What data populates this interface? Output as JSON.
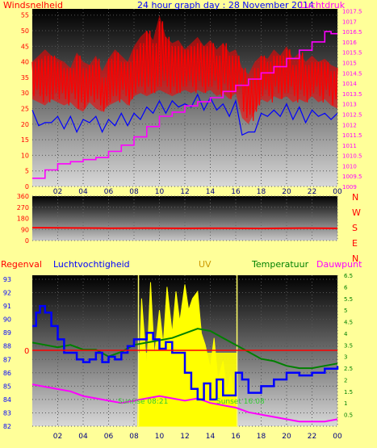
{
  "chart_data": [
    {
      "type": "line",
      "title": "24 hour graph day : 28 November 2014",
      "left_axis_label": "Windsnelheid",
      "right_axis_label": "Luchtdruk",
      "x_ticks": [
        "02",
        "04",
        "06",
        "08",
        "10",
        "12",
        "14",
        "16",
        "18",
        "20",
        "22",
        "00"
      ],
      "y_left_ticks": [
        0,
        5,
        10,
        15,
        20,
        25,
        30,
        35,
        40,
        45,
        50,
        55
      ],
      "y_left_range": [
        0,
        57
      ],
      "y_right_ticks": [
        "1009",
        "1009.5",
        "1010",
        "1010.5",
        "1011",
        "1011.5",
        "1012",
        "1012.5",
        "1013",
        "1013.5",
        "1014",
        "1014.5",
        "1015",
        "1015.5",
        "1016",
        "1016.5",
        "1017",
        "1017.5"
      ],
      "y_right_range": [
        1009,
        1017.6
      ],
      "colors": {
        "gust": "#ff0000",
        "average": "#0000ff",
        "pressure": "#ff00ff"
      },
      "series": [
        {
          "name": "",
          "values": [
            {
              "t": 0.0,
              "lo": 28,
              "hi": 40
            },
            {
              "t": 0.5,
              "lo": 27,
              "hi": 42
            },
            {
              "t": 1.0,
              "lo": 26,
              "hi": 44
            },
            {
              "t": 1.5,
              "lo": 28,
              "hi": 42
            },
            {
              "t": 2.0,
              "lo": 27,
              "hi": 41
            },
            {
              "t": 2.5,
              "lo": 26,
              "hi": 40
            },
            {
              "t": 3.0,
              "lo": 27,
              "hi": 38
            },
            {
              "t": 3.5,
              "lo": 25,
              "hi": 43
            },
            {
              "t": 4.0,
              "lo": 24,
              "hi": 40
            },
            {
              "t": 4.5,
              "lo": 27,
              "hi": 39
            },
            {
              "t": 5.0,
              "lo": 25,
              "hi": 42
            },
            {
              "t": 5.5,
              "lo": 24,
              "hi": 37
            },
            {
              "t": 6.0,
              "lo": 26,
              "hi": 41
            },
            {
              "t": 6.5,
              "lo": 27,
              "hi": 44
            },
            {
              "t": 7.0,
              "lo": 28,
              "hi": 42
            },
            {
              "t": 7.5,
              "lo": 26,
              "hi": 40
            },
            {
              "t": 8.0,
              "lo": 29,
              "hi": 45
            },
            {
              "t": 8.5,
              "lo": 30,
              "hi": 48
            },
            {
              "t": 9.0,
              "lo": 29,
              "hi": 50
            },
            {
              "t": 9.5,
              "lo": 30,
              "hi": 47
            },
            {
              "t": 10.0,
              "lo": 31,
              "hi": 55
            },
            {
              "t": 10.5,
              "lo": 30,
              "hi": 48
            },
            {
              "t": 11.0,
              "lo": 29,
              "hi": 46
            },
            {
              "t": 11.5,
              "lo": 30,
              "hi": 47
            },
            {
              "t": 12.0,
              "lo": 31,
              "hi": 44
            },
            {
              "t": 12.5,
              "lo": 30,
              "hi": 46
            },
            {
              "t": 13.0,
              "lo": 31,
              "hi": 48
            },
            {
              "t": 13.5,
              "lo": 30,
              "hi": 45
            },
            {
              "t": 14.0,
              "lo": 31,
              "hi": 47
            },
            {
              "t": 14.5,
              "lo": 29,
              "hi": 44
            },
            {
              "t": 15.0,
              "lo": 30,
              "hi": 46
            },
            {
              "t": 15.5,
              "lo": 28,
              "hi": 43
            },
            {
              "t": 16.0,
              "lo": 30,
              "hi": 44
            },
            {
              "t": 16.5,
              "lo": 22,
              "hi": 38
            },
            {
              "t": 17.0,
              "lo": 20,
              "hi": 36
            },
            {
              "t": 17.5,
              "lo": 24,
              "hi": 40
            },
            {
              "t": 18.0,
              "lo": 28,
              "hi": 42
            },
            {
              "t": 18.5,
              "lo": 27,
              "hi": 41
            },
            {
              "t": 19.0,
              "lo": 29,
              "hi": 44
            },
            {
              "t": 19.5,
              "lo": 28,
              "hi": 42
            },
            {
              "t": 20.0,
              "lo": 29,
              "hi": 45
            },
            {
              "t": 20.5,
              "lo": 27,
              "hi": 41
            },
            {
              "t": 21.0,
              "lo": 28,
              "hi": 43
            },
            {
              "t": 21.5,
              "lo": 27,
              "hi": 40
            },
            {
              "t": 22.0,
              "lo": 29,
              "hi": 42
            },
            {
              "t": 22.5,
              "lo": 27,
              "hi": 40
            },
            {
              "t": 23.0,
              "lo": 28,
              "hi": 41
            },
            {
              "t": 23.5,
              "lo": 26,
              "hi": 39
            },
            {
              "t": 24.0,
              "lo": 25,
              "hi": 38
            }
          ]
        },
        {
          "name": "",
          "x": [
            0,
            0.5,
            1,
            1.5,
            2,
            2.5,
            3,
            3.5,
            4,
            4.5,
            5,
            5.5,
            6,
            6.5,
            7,
            7.5,
            8,
            8.5,
            9,
            9.5,
            10,
            10.5,
            11,
            11.5,
            12,
            12.5,
            13,
            13.5,
            14,
            14.5,
            15,
            15.5,
            16,
            16.5,
            17,
            17.5,
            18,
            18.5,
            19,
            19.5,
            20,
            20.5,
            21,
            21.5,
            22,
            22.5,
            23,
            23.5,
            24
          ],
          "values": [
            23,
            21,
            19,
            22,
            21,
            20,
            21,
            19,
            20,
            22,
            21,
            19,
            20,
            21,
            22,
            21,
            22,
            23,
            24,
            25,
            26,
            25,
            26,
            27,
            25,
            27,
            28,
            26,
            27,
            26,
            25,
            24,
            26,
            18,
            16,
            19,
            22,
            24,
            23,
            24,
            25,
            23,
            24,
            22,
            23,
            24,
            22,
            23,
            22
          ]
        },
        {
          "name": "",
          "x": [
            0,
            1,
            2,
            3,
            4,
            5,
            6,
            7,
            8,
            9,
            10,
            11,
            12,
            13,
            14,
            15,
            16,
            17,
            18,
            19,
            20,
            21,
            22,
            23,
            23.5,
            24
          ],
          "values": [
            1009.4,
            1009.8,
            1010.1,
            1010.2,
            1010.3,
            1010.4,
            1010.7,
            1011.0,
            1011.4,
            1011.9,
            1012.4,
            1012.6,
            1012.9,
            1013.1,
            1013.3,
            1013.6,
            1013.9,
            1014.2,
            1014.5,
            1014.8,
            1015.2,
            1015.6,
            1016.0,
            1016.5,
            1016.4,
            1016.4
          ]
        }
      ]
    },
    {
      "type": "line",
      "x_ticks": [],
      "y_ticks": [
        0,
        90,
        180,
        270,
        360
      ],
      "y_range": [
        0,
        360
      ],
      "right_labels": [
        "N",
        "W",
        "S",
        "E",
        "N"
      ],
      "series": [
        {
          "name": "",
          "x": [
            0,
            3,
            6,
            9,
            12,
            15,
            18,
            21,
            24
          ],
          "values": [
            105,
            102,
            100,
            101,
            99,
            100,
            98,
            101,
            99
          ]
        }
      ]
    },
    {
      "type": "line",
      "labels": {
        "regenval": "Regenval",
        "humidity": "Luchtvochtigheid",
        "uv": "UV",
        "temperature": "Temperatuur",
        "dewpoint": "Dauwpunt",
        "sunrise": "Sunrise 08:21",
        "sunset": "Sunset 16:08"
      },
      "x_ticks": [
        "02",
        "04",
        "06",
        "08",
        "10",
        "12",
        "14",
        "16",
        "18",
        "20",
        "22",
        "00"
      ],
      "y_left_ticks": [
        82,
        83,
        84,
        85,
        86,
        87,
        88,
        89,
        90,
        91,
        92,
        93
      ],
      "y_left_range": [
        82,
        93.3
      ],
      "y_right_ticks": [
        "0.5",
        "1",
        "1.5",
        "2",
        "2.5",
        "3",
        "3.5",
        "4",
        "4.5",
        "5",
        "5.5",
        "6",
        "6.5"
      ],
      "y_right_range": [
        0,
        6.5
      ],
      "rain_axis_marker": "0",
      "colors": {
        "humidity": "#0000ff",
        "uv": "#ffff00",
        "temperature": "#008000",
        "dewpoint": "#ff00ff",
        "rain": "#ff0000"
      },
      "series": [
        {
          "name": "",
          "x": [
            0,
            0.3,
            0.6,
            1,
            1.5,
            2,
            2.5,
            3,
            3.5,
            4,
            4.5,
            5,
            5.5,
            6,
            6.5,
            7,
            7.5,
            8,
            9,
            9.5,
            10,
            10.5,
            11,
            12,
            12.5,
            13,
            13.5,
            14,
            14.5,
            15,
            16,
            16.5,
            17,
            18,
            19,
            20,
            21,
            22,
            23,
            24
          ],
          "values": [
            89.5,
            90.5,
            91.0,
            90.5,
            89.5,
            88.5,
            87.5,
            87.5,
            87.0,
            86.8,
            87.0,
            87.5,
            86.8,
            87.2,
            87.0,
            87.5,
            88.0,
            88.5,
            89.0,
            88.5,
            87.8,
            88.3,
            87.5,
            86.0,
            84.8,
            84.0,
            85.2,
            84.0,
            85.5,
            84.3,
            86.0,
            85.5,
            84.5,
            85.0,
            85.5,
            86.0,
            85.8,
            86.0,
            86.3,
            86.5
          ]
        },
        {
          "name": "",
          "x": [
            8.3,
            8.6,
            9,
            9.3,
            9.6,
            10,
            10.3,
            10.6,
            11,
            11.3,
            11.6,
            12,
            12.3,
            12.6,
            13,
            13.3,
            13.6,
            14,
            14.3,
            14.6,
            15,
            15.3,
            15.6,
            16.0,
            16.1
          ],
          "values": [
            0.3,
            5.5,
            2.5,
            6.2,
            3.0,
            5.0,
            3.5,
            6.0,
            4.0,
            5.8,
            4.5,
            6.1,
            5.0,
            5.5,
            5.8,
            4.0,
            3.5,
            2.5,
            3.8,
            2.0,
            2.8,
            1.5,
            2.2,
            1.0,
            0.3
          ]
        },
        {
          "name": "",
          "x": [
            0,
            1,
            2,
            3,
            4,
            5,
            6,
            7,
            8,
            9,
            10,
            11,
            12,
            13,
            14,
            15,
            16,
            17,
            18,
            19,
            20,
            21,
            22,
            23,
            24
          ],
          "values": [
            3.6,
            3.5,
            3.4,
            3.5,
            3.3,
            3.3,
            3.0,
            3.2,
            3.5,
            3.6,
            3.7,
            3.8,
            4.0,
            4.2,
            4.1,
            3.8,
            3.5,
            3.2,
            2.9,
            2.8,
            2.6,
            2.5,
            2.5,
            2.6,
            2.7
          ]
        },
        {
          "name": "",
          "x": [
            0,
            1,
            2,
            3,
            4,
            5,
            6,
            7,
            8,
            9,
            10,
            11,
            12,
            13,
            14,
            15,
            16,
            17,
            18,
            19,
            20,
            21,
            22,
            23,
            24
          ],
          "values": [
            1.8,
            1.7,
            1.6,
            1.5,
            1.3,
            1.2,
            1.1,
            1.0,
            1.1,
            1.2,
            1.3,
            1.2,
            1.1,
            1.2,
            1.0,
            0.9,
            0.8,
            0.6,
            0.5,
            0.4,
            0.3,
            0.2,
            0.2,
            0.2,
            0.3
          ]
        },
        {
          "name": "",
          "x": [
            0,
            24
          ],
          "values": [
            0,
            0
          ]
        }
      ]
    }
  ]
}
